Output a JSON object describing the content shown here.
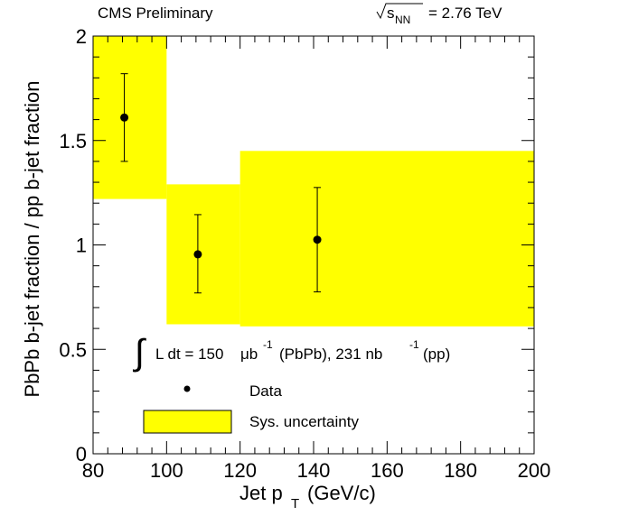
{
  "header": {
    "experiment": "CMS Preliminary",
    "energy_sqrt": "s",
    "energy_sub": "NN",
    "energy_value": "= 2.76 TeV"
  },
  "legend": {
    "lumi_prefix": "L dt = 150",
    "lumi_mu": "μb",
    "lumi_exp1": "-1",
    "lumi_mid": "(PbPb), 231 nb",
    "lumi_exp2": "-1",
    "lumi_suffix": "(pp)",
    "data_label": "Data",
    "sys_label": "Sys. uncertainty"
  },
  "chart_data": {
    "type": "scatter",
    "title": "",
    "xlabel": "Jet p",
    "xlabel_sub": "T",
    "xlabel_unit": "(GeV/c)",
    "ylabel": "PbPb b-jet fraction / pp b-jet fraction",
    "xlim": [
      80,
      200
    ],
    "ylim": [
      0,
      2
    ],
    "x_ticks": [
      80,
      100,
      120,
      140,
      160,
      180,
      200
    ],
    "y_ticks": [
      0,
      0.5,
      1,
      1.5,
      2
    ],
    "x_tick_labels": [
      "80",
      "100",
      "120",
      "140",
      "160",
      "180",
      "200"
    ],
    "y_tick_labels": [
      "0",
      "0.5",
      "1",
      "1.5",
      "2"
    ],
    "grid": false,
    "series": [
      {
        "name": "Data",
        "points": [
          {
            "x": 88.5,
            "y": 1.61,
            "err_low": 0.21,
            "err_high": 0.21
          },
          {
            "x": 108.5,
            "y": 0.955,
            "err_low": 0.185,
            "err_high": 0.19
          },
          {
            "x": 141,
            "y": 1.025,
            "err_low": 0.25,
            "err_high": 0.25
          }
        ]
      },
      {
        "name": "Sys. uncertainty",
        "boxes": [
          {
            "x0": 80,
            "x1": 100,
            "y0": 1.22,
            "y1": 2.0
          },
          {
            "x0": 100,
            "x1": 120,
            "y0": 0.62,
            "y1": 1.29
          },
          {
            "x0": 120,
            "x1": 200,
            "y0": 0.61,
            "y1": 1.45
          }
        ]
      }
    ],
    "colors": {
      "sys_fill": "#ffff00",
      "marker": "#000000"
    }
  }
}
